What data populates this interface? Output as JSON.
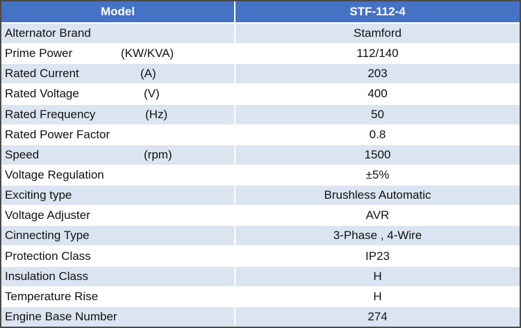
{
  "table": {
    "header": [
      "Model",
      "STF-112-4"
    ],
    "rows": [
      {
        "label": "Alternator Brand",
        "value": "Stamford"
      },
      {
        "label": "Prime Power",
        "unit": "(KW/KVA)",
        "value": "112/140"
      },
      {
        "label": "Rated Current",
        "unit": "(A)",
        "value": "203"
      },
      {
        "label": "Rated Voltage",
        "unit": "(V)",
        "value": "400"
      },
      {
        "label": "Rated  Frequency",
        "unit": "(Hz)",
        "value": "50"
      },
      {
        "label": "Rated Power Factor",
        "value": "0.8"
      },
      {
        "label": "Speed",
        "unit": "(rpm)",
        "value": "1500"
      },
      {
        "label": "Voltage Regulation",
        "value": "±5%"
      },
      {
        "label": "Exciting type",
        "value": "Brushless Automatic"
      },
      {
        "label": "Voltage Adjuster",
        "value": "AVR"
      },
      {
        "label": "Cinnecting Type",
        "value": "3-Phase , 4-Wire"
      },
      {
        "label": "Protection Class",
        "value": "IP23"
      },
      {
        "label": "Insulation Class",
        "value": "H"
      },
      {
        "label": "Temperature Rise",
        "value": "H"
      },
      {
        "label": "Engine Base Number",
        "value": "274"
      }
    ]
  }
}
